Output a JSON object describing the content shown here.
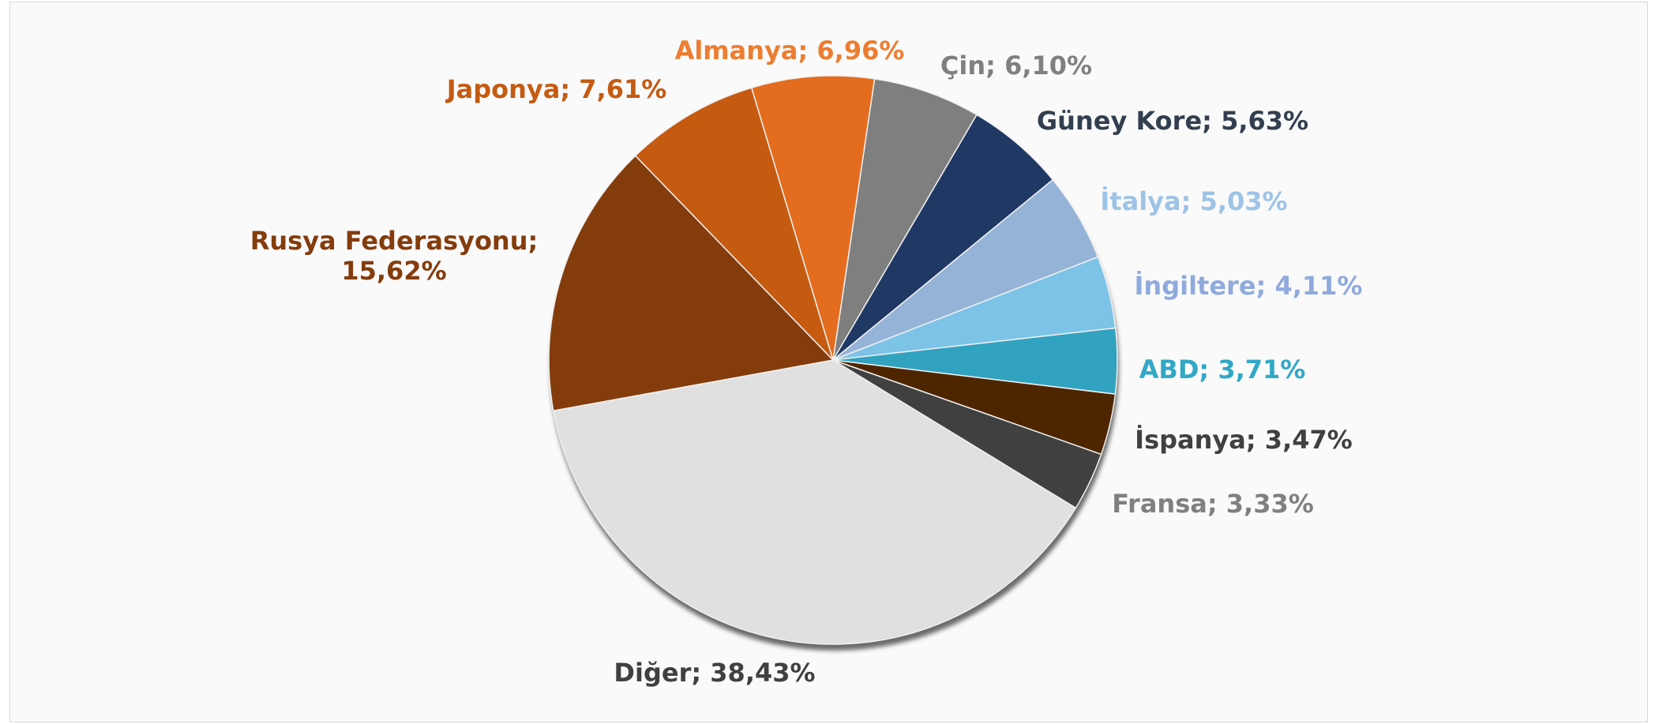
{
  "chart_data": {
    "type": "pie",
    "value_labels": [
      "Çin; 6,10%",
      "Güney Kore; 5,63%",
      "İtalya; 5,03%",
      "İngiltere; 4,11%",
      "ABD; 3,71%",
      "İspanya; 3,47%",
      "Fransa; 3,33%",
      "Diğer; 38,43%",
      "Rusya Federasyonu; 15,62%",
      "Japonya; 7,61%",
      "Almanya; 6,96%"
    ],
    "values": [
      6.1,
      5.63,
      5.03,
      4.11,
      3.71,
      3.47,
      3.33,
      38.43,
      15.62,
      7.61,
      6.96
    ],
    "colors": [
      "#7f7f7f",
      "#1f3864",
      "#95b3d7",
      "#7dc3e8",
      "#31a2bf",
      "#4d2600",
      "#404040",
      "#e0e0e0",
      "#843c0c",
      "#c55a11",
      "#e46c1e"
    ],
    "label_colors": [
      "#808080",
      "#333f50",
      "#9dc3e6",
      "#8faadc",
      "#31a8c6",
      "#404040",
      "#808080",
      "#404040",
      "#843c0c",
      "#c55a11",
      "#ed7d31"
    ]
  }
}
